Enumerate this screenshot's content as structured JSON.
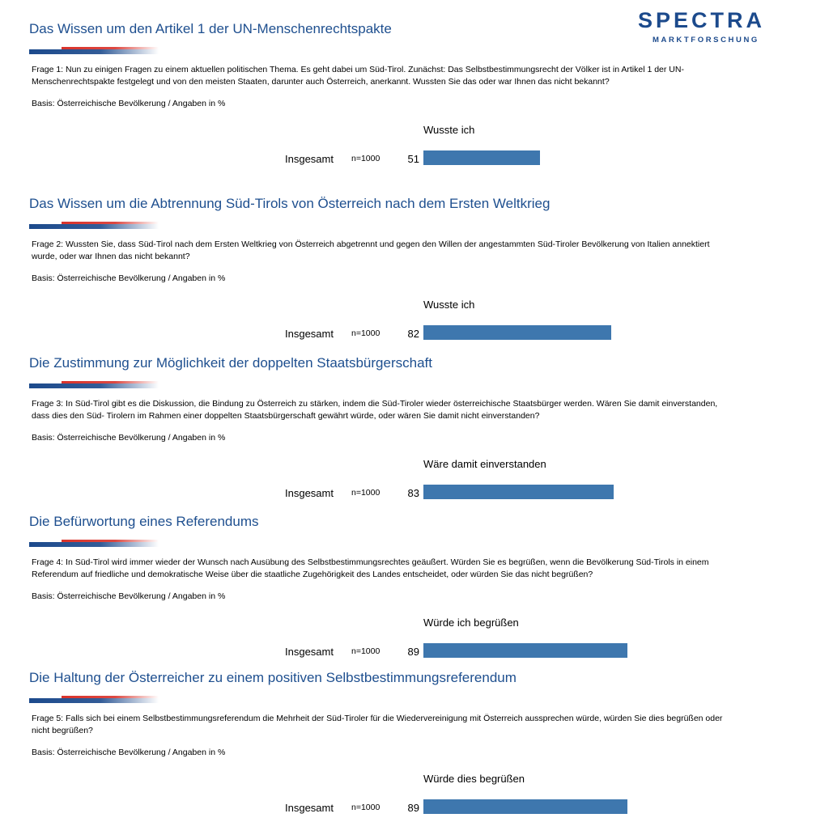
{
  "logo": {
    "main": "SPECTRA",
    "sub": "MARKTFORSCHUNG"
  },
  "colors": {
    "title": "#1e4f8f",
    "bar": "#3e77ae",
    "deco_blue": "#1c4a8c",
    "deco_red": "#d9332b"
  },
  "chart_data": [
    {
      "type": "bar",
      "title": "Das Wissen um den Artikel 1 der UN-Menschenrechtspakte",
      "question": "Frage 1: Nun zu einigen Fragen zu einem aktuellen politischen Thema. Es geht dabei um Süd-Tirol. Zunächst: Das Selbstbestimmungsrecht der Völker ist in Artikel 1 der UN-Menschenrechtspakte festgelegt und von den meisten Staaten, darunter auch Österreich, anerkannt. Wussten Sie das oder war Ihnen das nicht bekannt?",
      "basis": "Basis: Österreichische Bevölkerung / Angaben in %",
      "series": [
        {
          "name": "Wusste ich",
          "values": [
            51
          ]
        }
      ],
      "categories": [
        "Insgesamt"
      ],
      "n": "n=1000",
      "value_labels": [
        "51"
      ],
      "ylim": [
        0,
        100
      ]
    },
    {
      "type": "bar",
      "title": "Das Wissen um die Abtrennung Süd-Tirols von Österreich nach dem Ersten Weltkrieg",
      "question": "Frage 2: Wussten Sie, dass Süd-Tirol nach dem Ersten Weltkrieg von Österreich abgetrennt und gegen den Willen der angestammten Süd-Tiroler Bevölkerung von Italien annektiert wurde, oder war Ihnen das nicht bekannt?",
      "basis": "Basis: Österreichische Bevölkerung / Angaben in %",
      "series": [
        {
          "name": "Wusste ich",
          "values": [
            82
          ]
        }
      ],
      "categories": [
        "Insgesamt"
      ],
      "n": "n=1000",
      "value_labels": [
        "82"
      ],
      "ylim": [
        0,
        100
      ]
    },
    {
      "type": "bar",
      "title": "Die Zustimmung zur Möglichkeit der doppelten Staatsbürgerschaft",
      "question": "Frage 3: In Süd-Tirol gibt es die Diskussion, die Bindung zu Österreich zu stärken, indem die Süd-Tiroler wieder österreichische Staatsbürger werden. Wären Sie damit einverstanden, dass dies den Süd- Tirolern im Rahmen einer doppelten Staatsbürgerschaft gewährt würde, oder wären Sie damit nicht einverstanden?",
      "basis": "Basis: Österreichische Bevölkerung / Angaben in %",
      "series": [
        {
          "name": "Wäre damit einverstanden",
          "values": [
            83
          ]
        }
      ],
      "categories": [
        "Insgesamt"
      ],
      "n": "n=1000",
      "value_labels": [
        "83"
      ],
      "ylim": [
        0,
        100
      ]
    },
    {
      "type": "bar",
      "title": "Die Befürwortung eines Referendums",
      "question": "Frage 4: In Süd-Tirol wird immer wieder der Wunsch nach Ausübung des Selbstbestimmungsrechtes geäußert. Würden Sie es begrüßen, wenn die Bevölkerung Süd-Tirols in einem Referendum auf friedliche und demokratische Weise über die staatliche Zugehörigkeit des Landes entscheidet, oder würden Sie das nicht begrüßen?",
      "basis": "Basis: Österreichische Bevölkerung / Angaben in %",
      "series": [
        {
          "name": "Würde ich begrüßen",
          "values": [
            89
          ]
        }
      ],
      "categories": [
        "Insgesamt"
      ],
      "n": "n=1000",
      "value_labels": [
        "89"
      ],
      "ylim": [
        0,
        100
      ]
    },
    {
      "type": "bar",
      "title": "Die Haltung der Österreicher zu einem positiven Selbstbestimmungsreferendum",
      "question": "Frage 5: Falls sich bei einem Selbstbestimmungsreferendum die Mehrheit der Süd-Tiroler für die Wiedervereinigung mit Österreich aussprechen würde, würden Sie dies begrüßen oder nicht begrüßen?",
      "basis": "Basis: Österreichische Bevölkerung / Angaben in %",
      "series": [
        {
          "name": "Würde dies begrüßen",
          "values": [
            89
          ]
        }
      ],
      "categories": [
        "Insgesamt"
      ],
      "n": "n=1000",
      "value_labels": [
        "89"
      ],
      "ylim": [
        0,
        100
      ]
    }
  ]
}
